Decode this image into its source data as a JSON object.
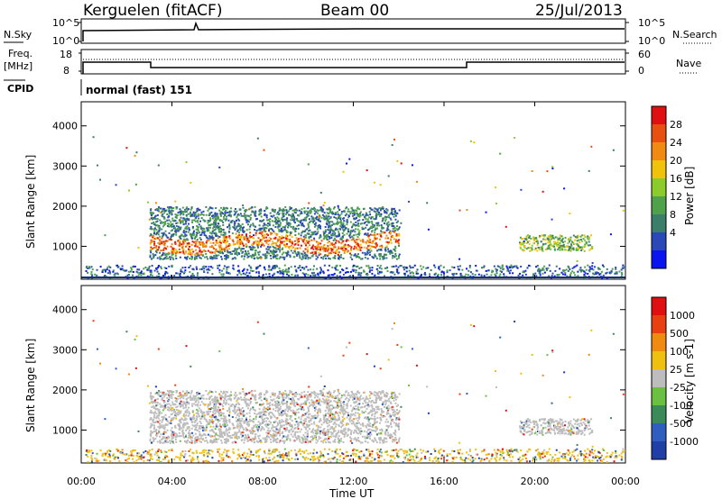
{
  "header": {
    "station": "Kerguelen (fitACF)",
    "beam": "Beam 00",
    "date": "25/Jul/2013"
  },
  "top_panels": {
    "nsky_label": "N.Sky",
    "nsky_ticks": [
      "10^5",
      "10^0"
    ],
    "nsearch_label": "N.Search",
    "freq_label": "Freq.",
    "freq_unit": "[MHz]",
    "freq_ticks": [
      "18",
      "8"
    ],
    "nave_label": "Nave",
    "nave_ticks": [
      "60",
      "0"
    ],
    "cpid_label": "CPID",
    "cpid_value": "normal (fast) 151"
  },
  "axes": {
    "ylabel": "Slant Range [km]",
    "xlabel": "Time UT",
    "yticks": [
      "1000",
      "2000",
      "3000",
      "4000"
    ],
    "xticks": [
      "00:00",
      "04:00",
      "08:00",
      "12:00",
      "16:00",
      "20:00",
      "00:00"
    ]
  },
  "power_scale": {
    "label": "Power [dB]",
    "ticks": [
      "4",
      "8",
      "12",
      "16",
      "20",
      "24",
      "28"
    ],
    "colors": [
      "#0a14f0",
      "#2b48b8",
      "#3b7f6a",
      "#4fa24a",
      "#8ccc2a",
      "#f0c20a",
      "#f08a10",
      "#e85010",
      "#e01010"
    ]
  },
  "velocity_scale": {
    "label": "Velocity [m s-1]",
    "ticks": [
      "1000",
      "500",
      "100",
      "25",
      "-25",
      "-100",
      "-500",
      "-1000"
    ],
    "colors": [
      "#1f3ea8",
      "#2f5ec0",
      "#3b8a5a",
      "#6ac040",
      "#bdbdbd",
      "#f0c010",
      "#f08a10",
      "#e84010",
      "#e01010"
    ]
  },
  "chart_data": {
    "type": "heatmap",
    "x_range": [
      "00:00",
      "24:00"
    ],
    "y_range": [
      180,
      4600
    ],
    "frequency_mhz": [
      {
        "from": "00:00",
        "to": "03:00",
        "value": 13
      },
      {
        "from": "03:00",
        "to": "17:00",
        "value": 10
      },
      {
        "from": "17:00",
        "to": "24:00",
        "value": 13
      }
    ],
    "power_regions": [
      {
        "t0": 3.0,
        "t1": 14.0,
        "r0": 700,
        "r1": 2000,
        "level_db": 24
      },
      {
        "t0": 19.3,
        "t1": 22.5,
        "r0": 900,
        "r1": 1300,
        "level_db": 12
      }
    ]
  }
}
